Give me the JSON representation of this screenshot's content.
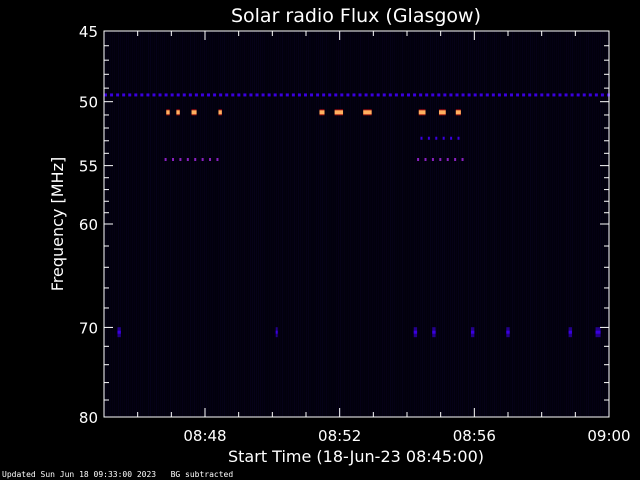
{
  "chart_data": {
    "type": "heatmap",
    "title": "Solar radio Flux (Glasgow)",
    "xlabel": "Start Time (18-Jun-23 08:45:00)",
    "ylabel": "Frequency [MHz]",
    "x_range_minutes": [
      0,
      15
    ],
    "x_ticks": [
      {
        "minutes": 3,
        "label": "08:48"
      },
      {
        "minutes": 7,
        "label": "08:52"
      },
      {
        "minutes": 11,
        "label": "08:56"
      },
      {
        "minutes": 15,
        "label": "09:00"
      }
    ],
    "y_scale": "log",
    "ylim": [
      45,
      80
    ],
    "y_ticks": [
      45,
      50,
      55,
      60,
      70,
      80
    ],
    "colormap": [
      "#000000",
      "#1a0070",
      "#3a00e0",
      "#8a20c0",
      "#ff3a20",
      "#ffb060"
    ],
    "features": [
      {
        "kind": "band",
        "freq_mhz": 49.5,
        "intensity": 0.45,
        "spans": [
          [
            0.0,
            15.0
          ]
        ]
      },
      {
        "kind": "burst",
        "freq_mhz": 50.8,
        "intensity": 0.95,
        "spans": [
          [
            1.85,
            1.95
          ],
          [
            2.15,
            2.25
          ],
          [
            2.6,
            2.75
          ],
          [
            3.4,
            3.5
          ],
          [
            6.4,
            6.55
          ],
          [
            6.85,
            7.1
          ],
          [
            7.7,
            7.95
          ],
          [
            9.35,
            9.55
          ],
          [
            9.95,
            10.15
          ],
          [
            10.45,
            10.6
          ]
        ]
      },
      {
        "kind": "band",
        "freq_mhz": 52.8,
        "intensity": 0.45,
        "spans": [
          [
            9.4,
            10.6
          ]
        ]
      },
      {
        "kind": "band",
        "freq_mhz": 54.5,
        "intensity": 0.5,
        "spans": [
          [
            1.8,
            3.5
          ],
          [
            9.3,
            10.7
          ]
        ]
      },
      {
        "kind": "blip",
        "freq_mhz": 70.5,
        "intensity": 0.4,
        "spans": [
          [
            0.4,
            0.5
          ],
          [
            5.1,
            5.15
          ],
          [
            9.2,
            9.3
          ],
          [
            9.75,
            9.85
          ],
          [
            10.9,
            11.0
          ],
          [
            11.95,
            12.05
          ],
          [
            13.8,
            13.9
          ],
          [
            14.6,
            14.75
          ]
        ]
      }
    ]
  },
  "footer": {
    "updated": "Updated Sun Jun 18 09:33:00 2023",
    "note": "BG subtracted"
  }
}
